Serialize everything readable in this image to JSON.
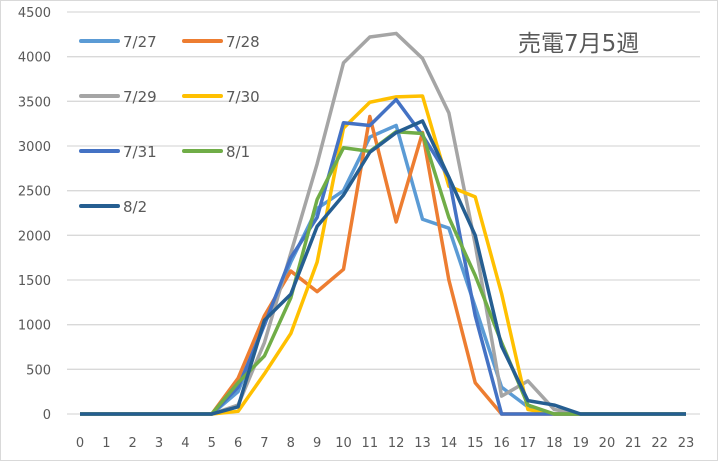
{
  "chart_data": {
    "type": "line",
    "title": "売電7月5週",
    "xlabel": "",
    "ylabel": "",
    "x": [
      0,
      1,
      2,
      3,
      4,
      5,
      6,
      7,
      8,
      9,
      10,
      11,
      12,
      13,
      14,
      15,
      16,
      17,
      18,
      19,
      20,
      21,
      22,
      23
    ],
    "ylim": [
      0,
      4500
    ],
    "yticks": [
      0,
      500,
      1000,
      1500,
      2000,
      2500,
      3000,
      3500,
      4000,
      4500
    ],
    "grid": true,
    "legend": "top-left",
    "series": [
      {
        "name": "7/27",
        "color": "#5b9bd5",
        "values": [
          0,
          0,
          0,
          0,
          0,
          0,
          250,
          1000,
          1700,
          2300,
          2500,
          3100,
          3230,
          2180,
          2080,
          1200,
          300,
          80,
          0,
          0,
          0,
          0,
          0,
          0
        ]
      },
      {
        "name": "7/28",
        "color": "#ed7d31",
        "values": [
          0,
          0,
          0,
          0,
          0,
          0,
          400,
          1100,
          1600,
          1370,
          1620,
          3330,
          2150,
          3150,
          1500,
          350,
          0,
          0,
          0,
          0,
          0,
          0,
          0,
          0
        ]
      },
      {
        "name": "7/29",
        "color": "#a5a5a5",
        "values": [
          0,
          0,
          0,
          0,
          0,
          0,
          100,
          800,
          1800,
          2800,
          3930,
          4220,
          4260,
          3980,
          3370,
          1900,
          200,
          370,
          50,
          0,
          0,
          0,
          0,
          0
        ]
      },
      {
        "name": "7/30",
        "color": "#ffc000",
        "values": [
          0,
          0,
          0,
          0,
          0,
          0,
          30,
          450,
          900,
          1700,
          3200,
          3490,
          3550,
          3560,
          2550,
          2430,
          1350,
          50,
          0,
          0,
          0,
          0,
          0,
          0
        ]
      },
      {
        "name": "7/31",
        "color": "#4472c4",
        "values": [
          0,
          0,
          0,
          0,
          0,
          0,
          300,
          1000,
          1750,
          2200,
          3260,
          3230,
          3520,
          3120,
          2650,
          1100,
          0,
          0,
          0,
          0,
          0,
          0,
          0,
          0
        ]
      },
      {
        "name": "8/1",
        "color": "#70ad47",
        "values": [
          0,
          0,
          0,
          0,
          0,
          0,
          350,
          650,
          1300,
          2400,
          2980,
          2940,
          3160,
          3140,
          2200,
          1550,
          800,
          100,
          0,
          0,
          0,
          0,
          0,
          0
        ]
      },
      {
        "name": "8/2",
        "color": "#255e91",
        "values": [
          0,
          0,
          0,
          0,
          0,
          0,
          80,
          1050,
          1340,
          2100,
          2450,
          2930,
          3150,
          3280,
          2650,
          2000,
          760,
          150,
          100,
          0,
          0,
          0,
          0,
          0
        ]
      }
    ]
  }
}
